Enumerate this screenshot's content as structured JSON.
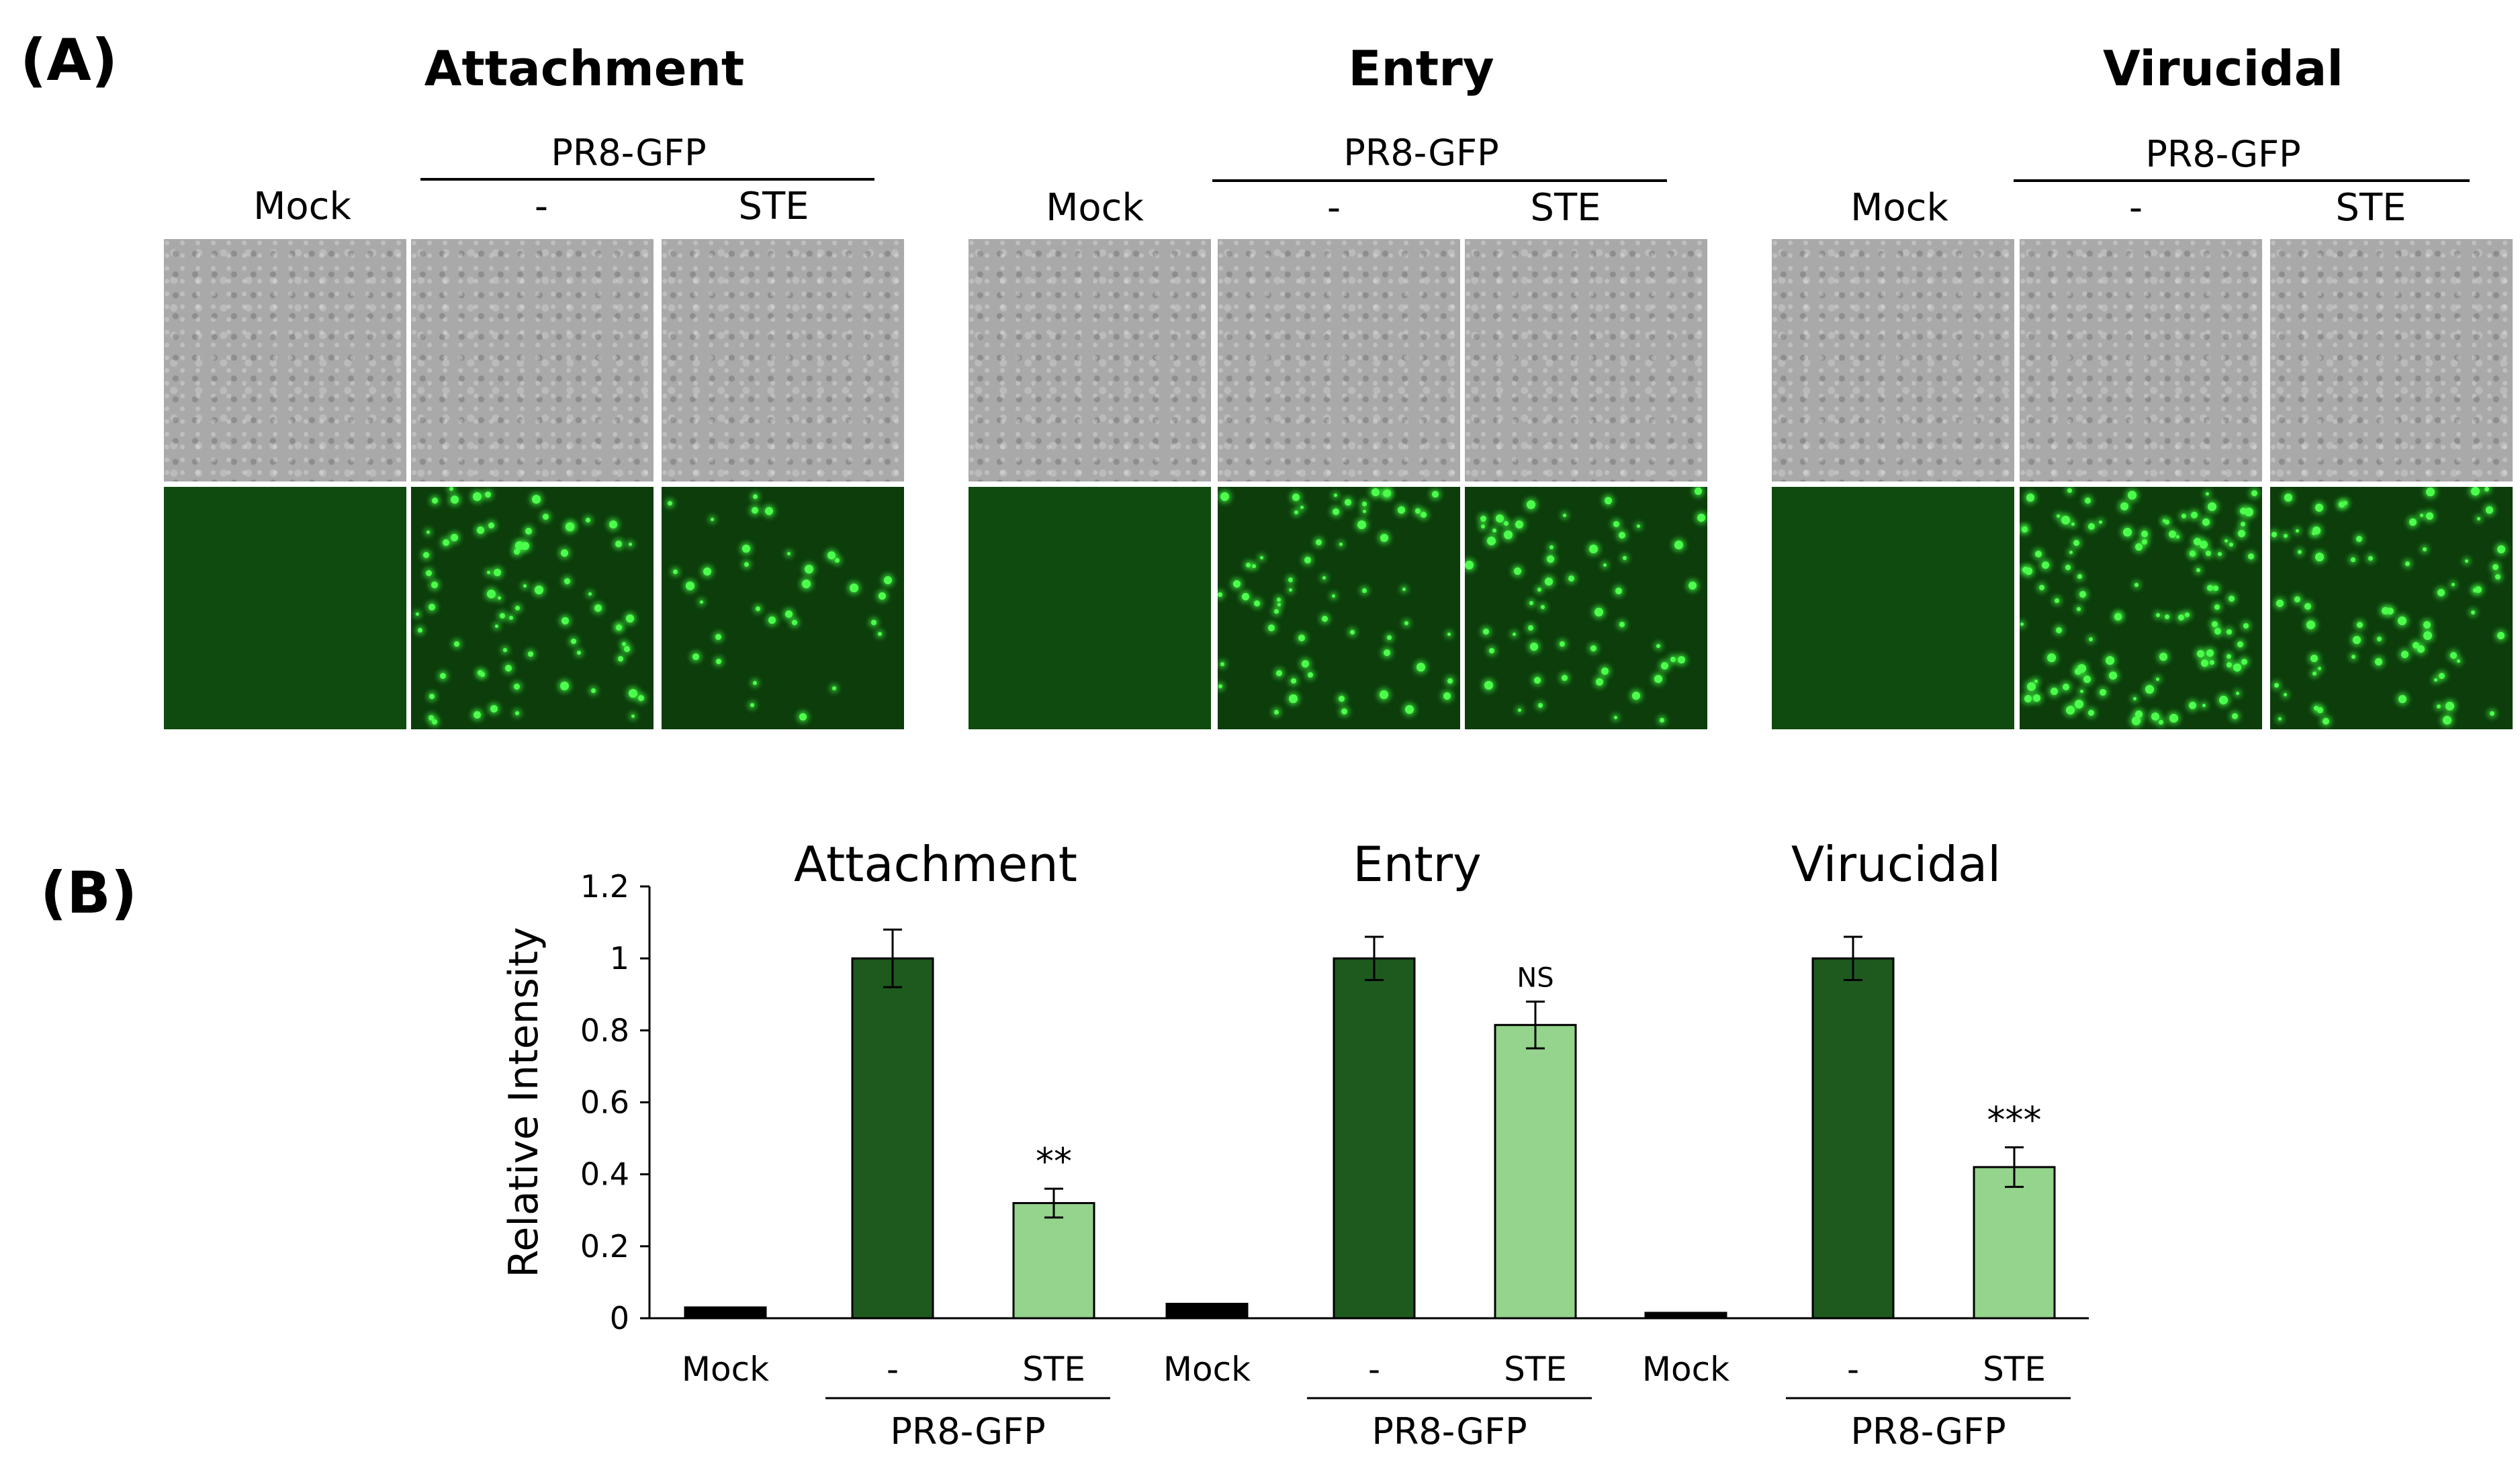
{
  "panel_a": {
    "label": "(A)",
    "groups": [
      {
        "title": "Attachment",
        "virus": "PR8-GFP",
        "columns": [
          "Mock",
          "-",
          "STE"
        ]
      },
      {
        "title": "Entry",
        "virus": "PR8-GFP",
        "columns": [
          "Mock",
          "-",
          "STE"
        ]
      },
      {
        "title": "Virucidal",
        "virus": "PR8-GFP",
        "columns": [
          "Mock",
          "-",
          "STE"
        ]
      }
    ]
  },
  "panel_b": {
    "label": "(B)"
  },
  "chart_data": {
    "type": "bar",
    "ylabel": "Relative  Intensity",
    "ylim": [
      0,
      1.2
    ],
    "yticks": [
      "0",
      "0.2",
      "0.4",
      "0.6",
      "0.8",
      "1",
      "1.2"
    ],
    "ytick_values": [
      0,
      0.2,
      0.4,
      0.6,
      0.8,
      1.0,
      1.2
    ],
    "groups": [
      {
        "title": "Attachment",
        "virus": "PR8-GFP",
        "categories": [
          "Mock",
          "-",
          "STE"
        ],
        "values": [
          0.03,
          1.0,
          0.32
        ],
        "errors": [
          0,
          0.08,
          0.04
        ],
        "annotations": [
          "",
          "",
          "**"
        ]
      },
      {
        "title": "Entry",
        "virus": "PR8-GFP",
        "categories": [
          "Mock",
          "-",
          "STE"
        ],
        "values": [
          0.04,
          1.0,
          0.815
        ],
        "errors": [
          0,
          0.06,
          0.065
        ],
        "annotations": [
          "",
          "",
          "NS"
        ]
      },
      {
        "title": "Virucidal",
        "virus": "PR8-GFP",
        "categories": [
          "Mock",
          "-",
          "STE"
        ],
        "values": [
          0.015,
          1.0,
          0.42
        ],
        "errors": [
          0,
          0.06,
          0.055
        ],
        "annotations": [
          "",
          "",
          "***"
        ]
      }
    ],
    "colors": {
      "mock": "#000000",
      "virus": "#1e5a1e",
      "ste": "#94d48c"
    }
  }
}
